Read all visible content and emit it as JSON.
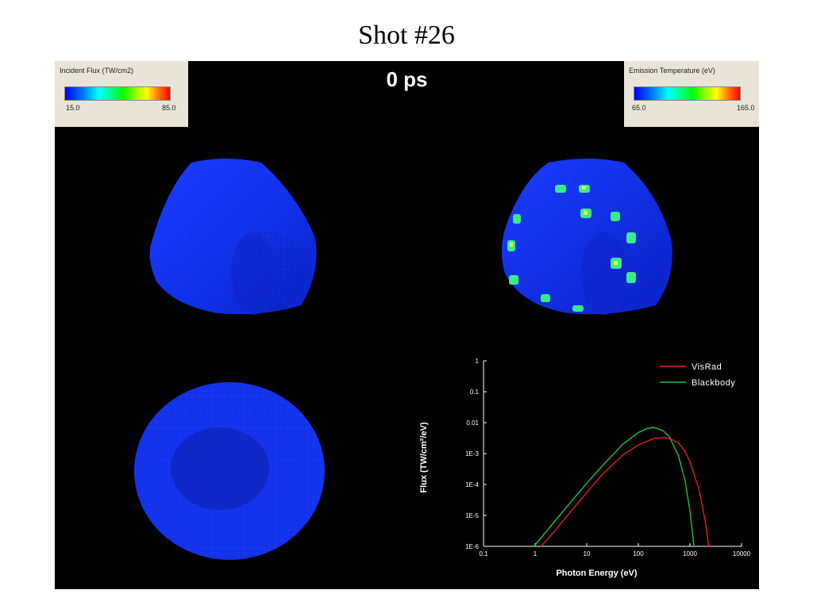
{
  "slide": {
    "title": "Shot #26"
  },
  "panel": {
    "time_label": "0 ps"
  },
  "legends": {
    "incident_flux": {
      "title": "Incident Flux (TW/cm2)",
      "min": "15.0",
      "max": "85.0"
    },
    "emission_temperature": {
      "title": "Emission Temperature (eV)",
      "min": "65.0",
      "max": "165.0"
    }
  },
  "chart_data": {
    "type": "line",
    "xlabel": "Photon Energy (eV)",
    "ylabel": "Flux (TW/cm²/eV)",
    "x_scale": "log",
    "y_scale": "log",
    "xlim": [
      0.1,
      10000
    ],
    "ylim": [
      1e-06,
      1
    ],
    "x_tick_labels": [
      "0.1",
      "1",
      "10",
      "100",
      "1000",
      "10000"
    ],
    "y_tick_labels": [
      "1E-6",
      "1E-5",
      "1E-4",
      "1E-3",
      "0.01",
      "0.1",
      "1"
    ],
    "legend_position": "top-right",
    "series": [
      {
        "name": "VisRad",
        "color": "#e02020",
        "x": [
          1.3,
          2,
          5,
          10,
          20,
          50,
          100,
          200,
          300,
          400,
          600,
          800,
          1000,
          1500,
          2000,
          2300
        ],
        "y": [
          1e-06,
          2.2e-06,
          1.4e-05,
          5.5e-05,
          0.00021,
          0.0009,
          0.0019,
          0.0031,
          0.0033,
          0.0031,
          0.0022,
          0.0012,
          0.00055,
          7e-05,
          6e-06,
          1e-06
        ]
      },
      {
        "name": "Blackbody",
        "color": "#20c040",
        "x": [
          0.95,
          2,
          5,
          10,
          20,
          50,
          100,
          150,
          200,
          300,
          400,
          600,
          800,
          1000,
          1200
        ],
        "y": [
          1e-06,
          4.5e-06,
          2.8e-05,
          0.00011,
          0.0004,
          0.002,
          0.0048,
          0.0065,
          0.007,
          0.0055,
          0.0035,
          0.00085,
          0.00014,
          1.4e-05,
          1e-06
        ]
      }
    ]
  }
}
